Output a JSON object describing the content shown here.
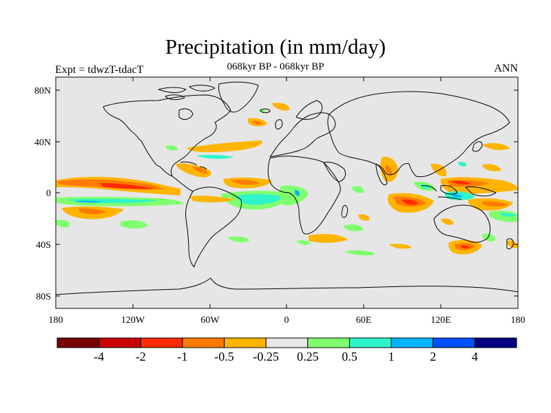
{
  "title": "Precipitation (in mm/day)",
  "subtitle": "068kyr BP - 068kyr BP",
  "left_label": "Expt = tdwzT-tdacT",
  "right_label": "ANN",
  "map": {
    "ocean_color": "#e6e6e6",
    "coastline_color": "#000000",
    "lon_ticks": [
      "180",
      "120W",
      "60W",
      "0",
      "60E",
      "120E",
      "180"
    ],
    "lat_ticks": [
      "80N",
      "40N",
      "0",
      "40S",
      "80S"
    ]
  },
  "colorbar": {
    "colors": [
      "#7a0000",
      "#c80000",
      "#ff2a00",
      "#ff7a00",
      "#ffb400",
      "#e6e6e6",
      "#80ff70",
      "#2ef5c9",
      "#00b4ff",
      "#0050ff",
      "#000080"
    ],
    "labels": [
      "-4",
      "-2",
      "-1",
      "-0.5",
      "-0.25",
      "0.25",
      "0.5",
      "1",
      "2",
      "4"
    ]
  }
}
